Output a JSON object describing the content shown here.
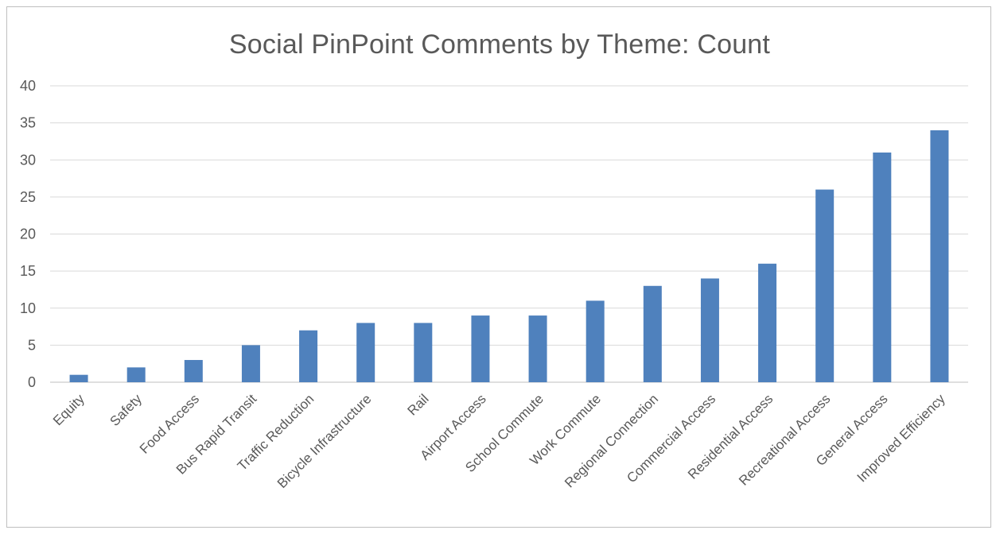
{
  "chart_data": {
    "type": "bar",
    "title": "Social PinPoint Comments by Theme: Count",
    "xlabel": "",
    "ylabel": "",
    "ylim": [
      0,
      40
    ],
    "yticks": [
      0,
      5,
      10,
      15,
      20,
      25,
      30,
      35,
      40
    ],
    "grid": true,
    "legend": "none",
    "bar_color": "#4f81bd",
    "categories": [
      "Equity",
      "Safety",
      "Food Access",
      "Bus Rapid Transit",
      "Traffic Reduction",
      "Bicycle Infrastructure",
      "Rail",
      "Airport Access",
      "School Commute",
      "Work Commute",
      "Regional Connection",
      "Commercial Access",
      "Residential Access",
      "Recreational Access",
      "General Access",
      "Improved Efficiency"
    ],
    "values": [
      1,
      2,
      3,
      5,
      7,
      8,
      8,
      9,
      9,
      11,
      13,
      14,
      16,
      26,
      31,
      34
    ]
  }
}
